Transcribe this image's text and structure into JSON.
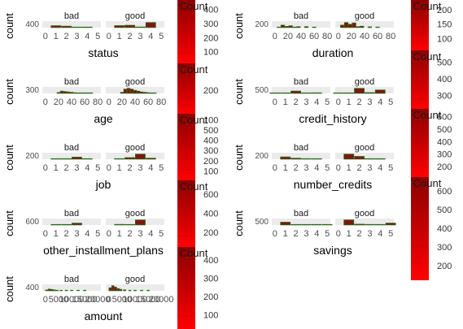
{
  "figure": {
    "background": "#ffffff",
    "panel_color": "#ebebeb",
    "bar_fill": "#7a1a10",
    "bar_edge": "#1f7a1f",
    "legend_high": "#8b0000",
    "legend_low": "#ff0000"
  },
  "chart_data": [
    {
      "type": "bar",
      "xlabel": "status",
      "ylabel": "count",
      "facets": [
        "bad",
        "good"
      ],
      "x_ticks": [
        "0",
        "1",
        "2",
        "3",
        "4",
        "5"
      ],
      "y_ticks": [
        "400"
      ],
      "series": [
        {
          "facet": "bad",
          "x": [
            1,
            2,
            3,
            4
          ],
          "y": [
            135,
            105,
            15,
            45
          ]
        },
        {
          "facet": "good",
          "x": [
            1,
            2,
            3,
            4
          ],
          "y": [
            140,
            165,
            50,
            350
          ]
        }
      ],
      "legend": {
        "title": "Count",
        "ticks": [
          "400",
          "300",
          "200",
          "100"
        ]
      }
    },
    {
      "type": "bar",
      "xlabel": "duration",
      "ylabel": "count",
      "facets": [
        "bad",
        "good"
      ],
      "x_ticks": [
        "0",
        "20",
        "40",
        "60",
        "80"
      ],
      "y_ticks": [
        "200"
      ],
      "series": [
        {
          "facet": "bad",
          "x": [
            6,
            12,
            18,
            24,
            30,
            36,
            48,
            60
          ],
          "y": [
            10,
            60,
            30,
            45,
            15,
            25,
            25,
            5
          ]
        },
        {
          "facet": "good",
          "x": [
            6,
            12,
            18,
            24,
            30,
            36,
            48,
            60
          ],
          "y": [
            60,
            120,
            80,
            110,
            25,
            35,
            20,
            5
          ]
        }
      ],
      "legend": {
        "title": "Count",
        "ticks": [
          "200",
          "150",
          "100"
        ]
      }
    },
    {
      "type": "bar",
      "xlabel": "age",
      "ylabel": "count",
      "facets": [
        "bad",
        "good"
      ],
      "x_ticks": [
        "0",
        "20",
        "40",
        "60",
        "80"
      ],
      "y_ticks": [
        "300"
      ],
      "series": [
        {
          "facet": "bad",
          "x": [
            20,
            25,
            30,
            35,
            40,
            45,
            50,
            55,
            60,
            65,
            70
          ],
          "y": [
            25,
            60,
            50,
            40,
            30,
            20,
            15,
            12,
            8,
            5,
            3
          ]
        },
        {
          "facet": "good",
          "x": [
            20,
            25,
            30,
            35,
            40,
            45,
            50,
            55,
            60,
            65,
            70
          ],
          "y": [
            30,
            110,
            130,
            110,
            80,
            60,
            40,
            30,
            20,
            10,
            5
          ]
        }
      ],
      "legend": {
        "title": "Count",
        "ticks": [
          "200"
        ]
      }
    },
    {
      "type": "bar",
      "xlabel": "credit_history",
      "ylabel": "count",
      "facets": [
        "bad",
        "good"
      ],
      "x_ticks": [
        "0",
        "1",
        "2",
        "3",
        "4",
        "5"
      ],
      "y_ticks": [
        "500"
      ],
      "series": [
        {
          "facet": "bad",
          "x": [
            0,
            1,
            2,
            3,
            4
          ],
          "y": [
            25,
            28,
            170,
            28,
            50
          ]
        },
        {
          "facet": "good",
          "x": [
            0,
            1,
            2,
            3,
            4
          ],
          "y": [
            15,
            21,
            360,
            60,
            245
          ]
        }
      ],
      "legend": {
        "title": "Count",
        "ticks": [
          "500",
          "400",
          "300"
        ]
      }
    },
    {
      "type": "bar",
      "xlabel": "job",
      "ylabel": "count",
      "facets": [
        "bad",
        "good"
      ],
      "x_ticks": [
        "0",
        "1",
        "2",
        "3",
        "4",
        "5"
      ],
      "y_ticks": [
        "200"
      ],
      "series": [
        {
          "facet": "bad",
          "x": [
            1,
            2,
            3,
            4
          ],
          "y": [
            7,
            56,
            186,
            51
          ]
        },
        {
          "facet": "good",
          "x": [
            1,
            2,
            3,
            4
          ],
          "y": [
            15,
            144,
            444,
            97
          ]
        }
      ],
      "legend": {
        "title": "Count",
        "ticks": [
          "100",
          "500",
          "400",
          "300",
          "200",
          "100"
        ]
      }
    },
    {
      "type": "bar",
      "xlabel": "number_credits",
      "ylabel": "count",
      "facets": [
        "bad",
        "good"
      ],
      "x_ticks": [
        "0",
        "1",
        "2",
        "3",
        "4",
        "5"
      ],
      "y_ticks": [
        "200"
      ],
      "series": [
        {
          "facet": "bad",
          "x": [
            1,
            2,
            3,
            4
          ],
          "y": [
            200,
            92,
            6,
            2
          ]
        },
        {
          "facet": "good",
          "x": [
            1,
            2,
            3,
            4
          ],
          "y": [
            433,
            241,
            22,
            4
          ]
        }
      ],
      "legend": {
        "title": "Count",
        "ticks": [
          "600",
          "500",
          "400",
          "300",
          "200"
        ]
      }
    },
    {
      "type": "bar",
      "xlabel": "other_installment_plans",
      "ylabel": "count",
      "facets": [
        "bad",
        "good"
      ],
      "x_ticks": [
        "0",
        "1",
        "2",
        "3",
        "4",
        "5"
      ],
      "y_ticks": [
        "600"
      ],
      "series": [
        {
          "facet": "bad",
          "x": [
            1,
            2,
            3
          ],
          "y": [
            57,
            19,
            224
          ]
        },
        {
          "facet": "good",
          "x": [
            1,
            2,
            3
          ],
          "y": [
            82,
            28,
            590
          ]
        }
      ],
      "legend": {
        "title": "Count",
        "ticks": [
          "600",
          "400",
          "200"
        ]
      }
    },
    {
      "type": "bar",
      "xlabel": "savings",
      "ylabel": "count",
      "facets": [
        "bad",
        "good"
      ],
      "x_ticks": [
        "0",
        "1",
        "2",
        "3",
        "4",
        "5"
      ],
      "y_ticks": [
        "500"
      ],
      "series": [
        {
          "facet": "bad",
          "x": [
            1,
            2,
            3,
            4,
            5
          ],
          "y": [
            217,
            34,
            11,
            6,
            32
          ]
        },
        {
          "facet": "good",
          "x": [
            1,
            2,
            3,
            4,
            5
          ],
          "y": [
            386,
            69,
            52,
            42,
            151
          ]
        }
      ],
      "legend": {
        "title": "Count",
        "ticks": [
          "600",
          "500",
          "400",
          "300",
          "200"
        ]
      }
    },
    {
      "type": "bar",
      "xlabel": "amount",
      "ylabel": "count",
      "facets": [
        "bad",
        "good"
      ],
      "x_ticks": [
        "0",
        "5000",
        "10000",
        "15000",
        "20000"
      ],
      "y_ticks": [
        "400"
      ],
      "series": [
        {
          "facet": "bad",
          "x": [
            500,
            1500,
            2500,
            3500,
            4500,
            6000,
            8000,
            10000,
            12500,
            15000
          ],
          "y": [
            35,
            70,
            55,
            35,
            25,
            25,
            20,
            15,
            10,
            5
          ]
        },
        {
          "facet": "good",
          "x": [
            500,
            1500,
            2500,
            3500,
            4500,
            6000,
            8000,
            10000,
            12500,
            15000
          ],
          "y": [
            120,
            200,
            150,
            90,
            60,
            40,
            20,
            10,
            5,
            3
          ]
        }
      ],
      "legend": {
        "title": "Count",
        "ticks": [
          "400",
          "300",
          "200",
          "100"
        ]
      }
    }
  ]
}
